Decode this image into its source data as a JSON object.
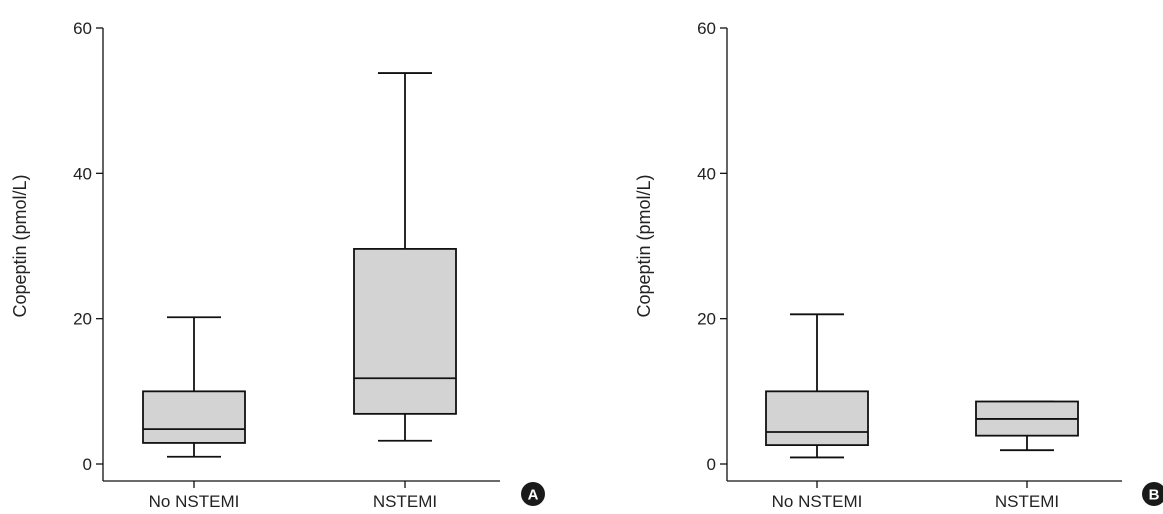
{
  "chart_data": [
    {
      "type": "box",
      "panel_label": "A",
      "ylabel": "Copeptin (pmol/L)",
      "xlabel": "",
      "ylim": [
        0,
        60
      ],
      "yticks": [
        0,
        20,
        40,
        60
      ],
      "grid": false,
      "categories": [
        "No NSTEMI",
        "NSTEMI"
      ],
      "boxes": [
        {
          "category": "No NSTEMI",
          "whisker_low": 1.0,
          "q1": 2.9,
          "median": 4.8,
          "q3": 10.0,
          "whisker_high": 20.2
        },
        {
          "category": "NSTEMI",
          "whisker_low": 3.2,
          "q1": 6.9,
          "median": 11.8,
          "q3": 29.6,
          "whisker_high": 53.8
        }
      ],
      "box_fill": "#d3d3d3",
      "line_color": "#111111"
    },
    {
      "type": "box",
      "panel_label": "B",
      "ylabel": "Copeptin (pmol/L)",
      "xlabel": "",
      "ylim": [
        0,
        60
      ],
      "yticks": [
        0,
        20,
        40,
        60
      ],
      "grid": false,
      "categories": [
        "No NSTEMI",
        "NSTEMI"
      ],
      "boxes": [
        {
          "category": "No NSTEMI",
          "whisker_low": 0.9,
          "q1": 2.6,
          "median": 4.4,
          "q3": 10.0,
          "whisker_high": 20.6
        },
        {
          "category": "NSTEMI",
          "whisker_low": 1.9,
          "q1": 3.9,
          "median": 6.2,
          "q3": 8.6,
          "whisker_high": 8.6
        }
      ],
      "box_fill": "#d3d3d3",
      "line_color": "#111111"
    }
  ]
}
